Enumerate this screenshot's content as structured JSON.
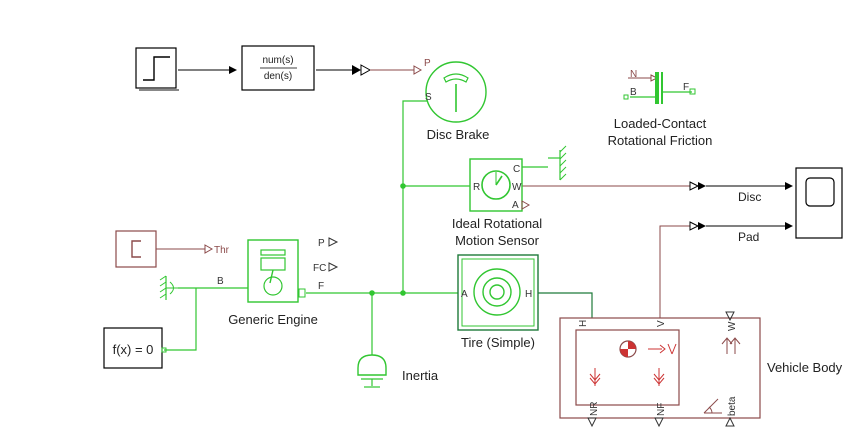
{
  "blocks": {
    "step": {},
    "transfer_fcn": {
      "numerator": "num(s)",
      "denominator": "den(s)"
    },
    "disc_brake": {
      "label": "Disc Brake",
      "port_p": "P",
      "port_s": "S"
    },
    "loaded_contact": {
      "label_line1": "Loaded-Contact",
      "label_line2": "Rotational Friction",
      "port_n": "N",
      "port_b": "B",
      "port_f": "F"
    },
    "motion_sensor": {
      "label_line1": "Ideal Rotational",
      "label_line2": "Motion Sensor",
      "port_c": "C",
      "port_r": "R",
      "port_w": "W",
      "port_a": "A"
    },
    "scope": {},
    "signal_labels": {
      "disc": "Disc",
      "pad": "Pad"
    },
    "constant": {
      "port_thr": "Thr"
    },
    "generic_engine": {
      "label": "Generic Engine",
      "port_b": "B",
      "port_f": "F",
      "port_p": "P",
      "port_fc": "FC"
    },
    "solver": {
      "label": "f(x) = 0"
    },
    "inertia": {
      "label": "Inertia"
    },
    "tire": {
      "label": "Tire (Simple)",
      "port_a": "A",
      "port_h": "H"
    },
    "vehicle_body": {
      "label": "Vehicle Body",
      "port_h": "H",
      "port_v": "V",
      "port_w": "W",
      "port_nr": "NR",
      "port_nf": "NF",
      "port_beta": "beta"
    }
  },
  "colors": {
    "physical_line": "#31c631",
    "signal_line": "#000000",
    "ps_line": "#8b4a4a",
    "block_green": "#1fbf52",
    "block_brown": "#8b4a4a"
  }
}
